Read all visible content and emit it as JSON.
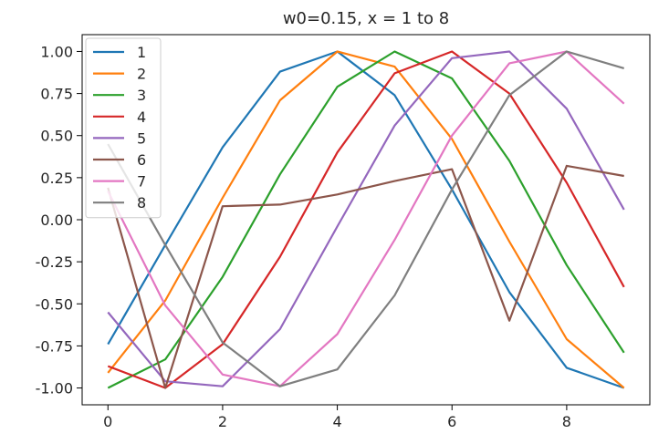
{
  "chart_data": {
    "type": "line",
    "title": "w0=0.15, x = 1 to 8",
    "xlabel": "",
    "ylabel": "",
    "xlim": [
      -0.45,
      9.45
    ],
    "ylim": [
      -1.1,
      1.1
    ],
    "xticks": [
      0,
      2,
      4,
      6,
      8
    ],
    "yticks": [
      1.0,
      0.75,
      0.5,
      0.25,
      0.0,
      -0.25,
      -0.5,
      -0.75,
      -1.0
    ],
    "xtick_labels": [
      "0",
      "2",
      "4",
      "6",
      "8"
    ],
    "ytick_labels": [
      "1.00",
      "0.75",
      "0.50",
      "0.25",
      "0.00",
      "-0.25",
      "-0.50",
      "-0.75",
      "-1.00"
    ],
    "grid": false,
    "legend_position": "upper-left",
    "x": [
      0,
      1,
      2,
      3,
      4,
      5,
      6,
      7,
      8,
      9
    ],
    "series": [
      {
        "name": "1",
        "color": "#1f77b4",
        "values": [
          -0.74,
          -0.15,
          0.43,
          0.88,
          1.0,
          0.74,
          0.18,
          -0.43,
          -0.88,
          -1.0
        ]
      },
      {
        "name": "2",
        "color": "#ff7f0e",
        "values": [
          -0.91,
          -0.48,
          0.13,
          0.71,
          1.0,
          0.91,
          0.48,
          -0.13,
          -0.71,
          -1.0
        ]
      },
      {
        "name": "3",
        "color": "#2ca02c",
        "values": [
          -1.0,
          -0.83,
          -0.34,
          0.27,
          0.79,
          1.0,
          0.84,
          0.35,
          -0.27,
          -0.79
        ]
      },
      {
        "name": "4",
        "color": "#d62728",
        "values": [
          -0.87,
          -1.0,
          -0.74,
          -0.22,
          0.4,
          0.87,
          1.0,
          0.75,
          0.22,
          -0.4
        ]
      },
      {
        "name": "5",
        "color": "#9467bd",
        "values": [
          -0.55,
          -0.96,
          -0.99,
          -0.65,
          -0.04,
          0.56,
          0.96,
          1.0,
          0.66,
          0.06
        ]
      },
      {
        "name": "6",
        "color": "#8c564b",
        "values": [
          0.19,
          -1.0,
          0.08,
          0.09,
          0.15,
          0.23,
          0.3,
          -0.6,
          0.32,
          0.26
        ]
      },
      {
        "name": "7",
        "color": "#e377c2",
        "values": [
          0.17,
          -0.51,
          -0.92,
          -0.99,
          -0.68,
          -0.12,
          0.5,
          0.93,
          1.0,
          0.69
        ]
      },
      {
        "name": "8",
        "color": "#7f7f7f",
        "values": [
          0.45,
          -0.15,
          -0.73,
          -0.99,
          -0.89,
          -0.45,
          0.18,
          0.74,
          1.0,
          0.9
        ]
      }
    ]
  }
}
